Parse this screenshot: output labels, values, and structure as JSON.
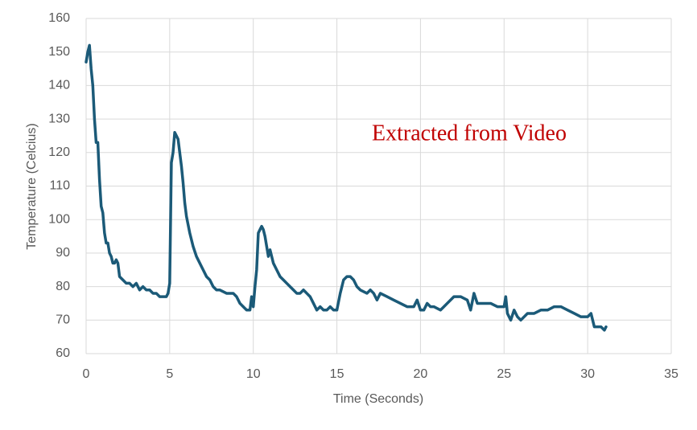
{
  "chart_data": {
    "type": "line",
    "xlabel": "Time (Seconds)",
    "ylabel": "Temperature (Celcius)",
    "annotation": "Extracted from Video",
    "annotation_color": "#c00000",
    "grid": true,
    "xlim": [
      0,
      35
    ],
    "xticks": [
      0,
      5,
      10,
      15,
      20,
      25,
      30,
      35
    ],
    "ylim": [
      60,
      160
    ],
    "yticks": [
      60,
      70,
      80,
      90,
      100,
      110,
      120,
      130,
      140,
      150,
      160
    ],
    "x": [
      0,
      0.1,
      0.2,
      0.3,
      0.4,
      0.5,
      0.6,
      0.7,
      0.8,
      0.9,
      1.0,
      1.1,
      1.2,
      1.3,
      1.4,
      1.5,
      1.6,
      1.7,
      1.8,
      1.9,
      2.0,
      2.2,
      2.4,
      2.6,
      2.8,
      3.0,
      3.2,
      3.4,
      3.6,
      3.8,
      4.0,
      4.2,
      4.4,
      4.6,
      4.8,
      4.9,
      5.0,
      5.1,
      5.2,
      5.3,
      5.4,
      5.5,
      5.6,
      5.7,
      5.8,
      5.9,
      6.0,
      6.2,
      6.4,
      6.6,
      6.8,
      7.0,
      7.2,
      7.4,
      7.6,
      7.8,
      8.0,
      8.4,
      8.8,
      9.0,
      9.2,
      9.4,
      9.6,
      9.8,
      9.9,
      10.0,
      10.1,
      10.2,
      10.3,
      10.4,
      10.5,
      10.6,
      10.7,
      10.8,
      10.9,
      11.0,
      11.2,
      11.4,
      11.6,
      11.8,
      12.0,
      12.2,
      12.4,
      12.6,
      12.8,
      13.0,
      13.2,
      13.4,
      13.6,
      13.8,
      14.0,
      14.2,
      14.4,
      14.6,
      14.8,
      15.0,
      15.2,
      15.4,
      15.6,
      15.8,
      16.0,
      16.2,
      16.4,
      16.8,
      17.0,
      17.2,
      17.4,
      17.6,
      18.0,
      18.4,
      18.8,
      19.2,
      19.6,
      19.8,
      20.0,
      20.2,
      20.4,
      20.6,
      20.8,
      21.2,
      21.6,
      22.0,
      22.4,
      22.8,
      23.0,
      23.2,
      23.4,
      23.8,
      24.2,
      24.6,
      25.0,
      25.1,
      25.2,
      25.4,
      25.6,
      25.8,
      26.0,
      26.4,
      26.8,
      27.2,
      27.6,
      28.0,
      28.4,
      28.8,
      29.2,
      29.6,
      30.0,
      30.2,
      30.4,
      30.6,
      30.8,
      31.0,
      31.1
    ],
    "series": [
      {
        "color": "#1b5a78",
        "values": [
          147,
          150,
          152,
          145,
          140,
          130,
          123,
          123,
          112,
          104,
          102,
          96,
          93,
          93,
          90,
          89,
          87,
          87,
          88,
          87,
          83,
          82,
          81,
          81,
          80,
          81,
          79,
          80,
          79,
          79,
          78,
          78,
          77,
          77,
          77,
          78,
          81,
          117,
          120,
          126,
          125,
          124,
          120,
          116,
          111,
          105,
          101,
          96,
          92,
          89,
          87,
          85,
          83,
          82,
          80,
          79,
          79,
          78,
          78,
          77,
          75,
          74,
          73,
          73,
          77,
          74,
          80,
          85,
          96,
          97,
          98,
          97,
          95,
          92,
          89,
          91,
          87,
          85,
          83,
          82,
          81,
          80,
          79,
          78,
          78,
          79,
          78,
          77,
          75,
          73,
          74,
          73,
          73,
          74,
          73,
          73,
          78,
          82,
          83,
          83,
          82,
          80,
          79,
          78,
          79,
          78,
          76,
          78,
          77,
          76,
          75,
          74,
          74,
          76,
          73,
          73,
          75,
          74,
          74,
          73,
          75,
          77,
          77,
          76,
          73,
          78,
          75,
          75,
          75,
          74,
          74,
          77,
          72,
          70,
          73,
          71,
          70,
          72,
          72,
          73,
          73,
          74,
          74,
          73,
          72,
          71,
          71,
          72,
          68,
          68,
          68,
          67,
          68
        ]
      }
    ]
  }
}
